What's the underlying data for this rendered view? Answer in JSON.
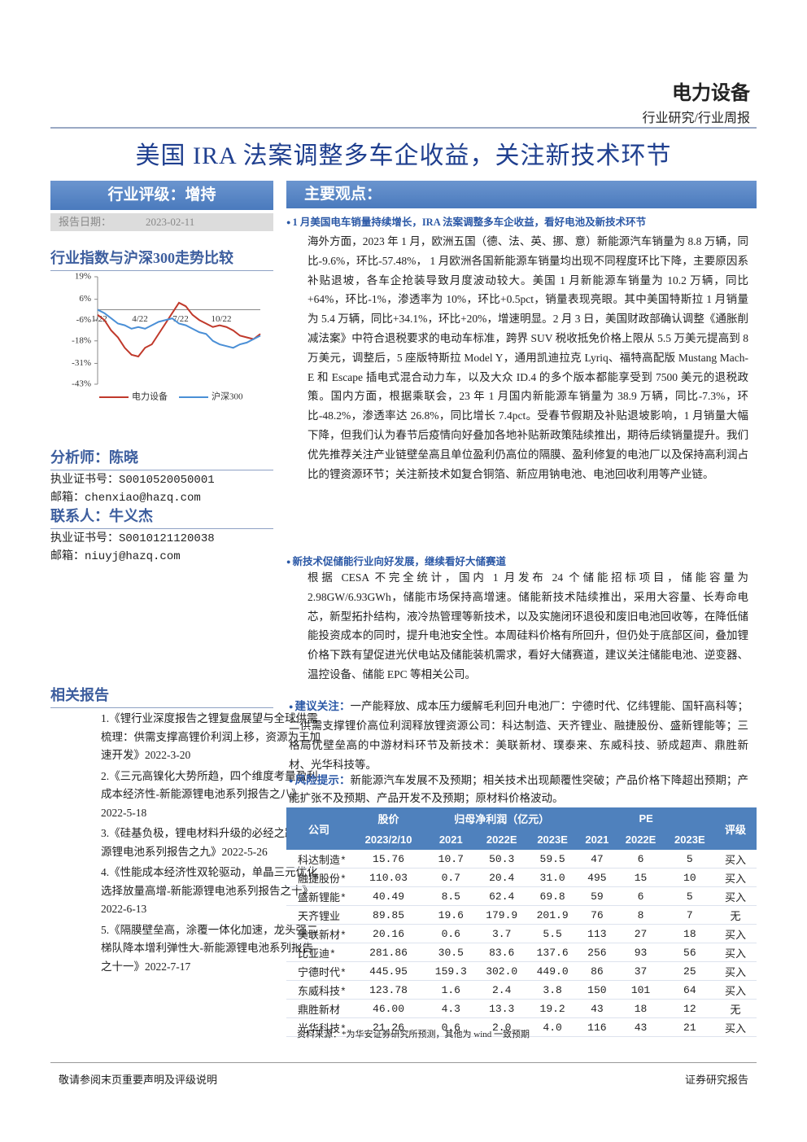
{
  "header": {
    "sector": "电力设备",
    "report_type": "行业研究/行业周报",
    "title": "美国 IRA 法案调整多车企收益，关注新技术环节"
  },
  "sidebar": {
    "rating": "行业评级：增持",
    "date_label": "报告日期：",
    "date": "2023-02-11",
    "chart_title": "行业指数与沪深300走势比较",
    "analyst": "分析师：陈晓",
    "analyst_cert": "执业证书号：S0010520050001",
    "analyst_email": "邮箱：chenxiao@hazq.com",
    "contact": "联系人：牛义杰",
    "contact_cert": "执业证书号：S0010121120038",
    "contact_email": "邮箱：niuyj@hazq.com",
    "related_title": "相关报告",
    "related": [
      "1.《锂行业深度报告之锂复盘展望与全球供需梳理：供需支撑高锂价利润上移，资源为王加速开发》2022-3-20",
      "2.《三元高镍化大势所趋，四个维度考量盈利成本经济性-新能源锂电池系列报告之八》2022-5-18",
      "3.《硅基负极，锂电材料升级的必经之路-新能源锂电池系列报告之九》2022-5-26",
      "4.《性能成本经济性双轮驱动，单晶三元优化选择放量高增-新能源锂电池系列报告之十》2022-6-13",
      "5.《隔膜壁垒高，涂覆一体化加速，龙头强二梯队降本增利弹性大-新能源锂电池系列报告之十一》2022-7-17"
    ]
  },
  "chart": {
    "type": "line",
    "categories": [
      "1/22",
      null,
      null,
      null,
      null,
      null,
      "4/22",
      null,
      null,
      null,
      null,
      null,
      "7/22",
      null,
      null,
      null,
      null,
      null,
      "10/22",
      null,
      null,
      null,
      null,
      null,
      null
    ],
    "series": [
      {
        "name": "电力设备",
        "color": "#c0392b",
        "values": [
          -3,
          -6,
          -12,
          -16,
          -22,
          -26,
          -27,
          -22,
          -20,
          -14,
          -8,
          -2,
          4,
          2,
          -3,
          -6,
          -8,
          -10,
          -9,
          -10,
          -12,
          -15,
          -16,
          -17,
          -14
        ]
      },
      {
        "name": "沪深300",
        "color": "#4a8fd6",
        "values": [
          0,
          -2,
          -5,
          -8,
          -9,
          -11,
          -10,
          -11,
          -9,
          -7,
          -6,
          -5,
          -8,
          -9,
          -11,
          -13,
          -14,
          -18,
          -20,
          -21,
          -22,
          -20,
          -19,
          -17,
          -15
        ]
      }
    ],
    "ylim": [
      -43,
      19
    ],
    "yticks": [
      {
        "value": 19,
        "label": "19%"
      },
      {
        "value": 6,
        "label": "6%"
      },
      {
        "value": -6,
        "label": "-6%"
      },
      {
        "value": -18,
        "label": "-18%"
      },
      {
        "value": -31,
        "label": "-31%"
      },
      {
        "value": -43,
        "label": "-43%"
      }
    ]
  },
  "main": {
    "heading": "主要观点：",
    "points": [
      {
        "heading": "1 月美国电车销量持续增长，IRA 法案调整多车企收益，看好电池及新技术环节",
        "text": "海外方面，2023 年 1 月，欧洲五国（德、法、英、挪、意）新能源汽车销量为 8.8 万辆，同比-9.6%，环比-57.48%， 1 月欧洲各国新能源车销量均出现不同程度环比下降，主要原因系补贴退坡，各车企抢装导致月度波动较大。美国 1 月新能源车销量为 10.2 万辆，同比+64%，环比-1%，渗透率为 10%，环比+0.5pct，销量表现亮眼。其中美国特斯拉 1 月销量为 5.4 万辆，同比+34.1%，环比+20%，增速明显。2 月 3 日，美国财政部确认调整《通胀削减法案》中符合退税要求的电动车标准，跨界 SUV 税收抵免价格上限从 5.5 万美元提高到 8 万美元，调整后，5 座版特斯拉 Model Y，通用凯迪拉克 Lyriq、福特高配版 Mustang Mach-E 和 Escape 插电式混合动力车，以及大众 ID.4 的多个版本都能享受到 7500 美元的退税政策。国内方面，根据乘联会，23 年 1 月国内新能源车销量为 38.9 万辆，同比-7.3%，环比-48.2%，渗透率达 26.8%，同比增长 7.4pct。受春节假期及补贴退坡影响，1 月销量大幅下降，但我们认为春节后疫情向好叠加各地补贴新政策陆续推出，期待后续销量提升。我们优先推荐关注产业链壁垒高且单位盈利仍高位的隔膜、盈利修复的电池厂以及保持高利润占比的锂资源环节；关注新技术如复合铜箔、新应用钠电池、电池回收利用等产业链。"
      },
      {
        "heading": "新技术促储能行业向好发展，继续看好大储赛道",
        "text": "根据 CESA 不完全统计，国内 1 月发布 24 个储能招标项目，储能容量为 2.98GW/6.93GWh，储能市场保持高增速。储能新技术陆续推出，采用大容量、长寿命电芯，新型拓扑结构，液冷热管理等新技术，以及实施闭环退役和废旧电池回收等，在降低储能投资成本的同时，提升电池安全性。本周硅料价格有所回升，但仍处于底部区间，叠加锂价格下跌有望促进光伏电站及储能装机需求，看好大储赛道，建议关注储能电池、逆变器、温控设备、储能 EPC 等相关公司。"
      }
    ],
    "suggest_label": "建议关注：",
    "suggest_text": "一产能释放、成本压力缓解毛利回升电池厂：宁德时代、亿纬锂能、国轩高科等；二供需支撑锂价高位利润释放锂资源公司：科达制造、天齐锂业、融捷股份、盛新锂能等；三格局优壁垒高的中游材料环节及新技术：美联新材、璞泰来、东威科技、骄成超声、鼎胜新材、光华科技等。",
    "risk_label": "风险提示：",
    "risk_text": "新能源汽车发展不及预期；相关技术出现颠覆性突破；产品价格下降超出预期；产能扩张不及预期、产品开发不及预期；原材料价格波动。"
  },
  "table": {
    "company": "公司",
    "price": "股价",
    "price_date": "2023/2/10",
    "profit": "归母净利润（亿元）",
    "pe": "PE",
    "rating": "评级",
    "years": [
      "2021",
      "2022E",
      "2023E"
    ],
    "rows": [
      [
        "科达制造*",
        "15.76",
        "10.7",
        "50.3",
        "59.5",
        "47",
        "6",
        "5",
        "买入"
      ],
      [
        "融捷股份*",
        "110.03",
        "0.7",
        "20.4",
        "31.0",
        "495",
        "15",
        "10",
        "买入"
      ],
      [
        "盛新锂能*",
        "40.49",
        "8.5",
        "62.4",
        "69.8",
        "59",
        "6",
        "5",
        "买入"
      ],
      [
        "天齐锂业",
        "89.85",
        "19.6",
        "179.9",
        "201.9",
        "76",
        "8",
        "7",
        "无"
      ],
      [
        "美联新材*",
        "20.16",
        "0.6",
        "3.7",
        "5.5",
        "113",
        "27",
        "18",
        "买入"
      ],
      [
        "比亚迪*",
        "281.86",
        "30.5",
        "83.6",
        "137.6",
        "256",
        "93",
        "56",
        "买入"
      ],
      [
        "宁德时代*",
        "445.95",
        "159.3",
        "302.0",
        "449.0",
        "86",
        "37",
        "25",
        "买入"
      ],
      [
        "东威科技*",
        "123.78",
        "1.6",
        "2.4",
        "3.8",
        "150",
        "101",
        "64",
        "买入"
      ],
      [
        "鼎胜新材",
        "46.00",
        "4.3",
        "13.3",
        "19.2",
        "43",
        "18",
        "12",
        "无"
      ],
      [
        "光华科技*",
        "21.26",
        "0.6",
        "2.0",
        "4.0",
        "116",
        "43",
        "21",
        "买入"
      ]
    ],
    "source": "资料来源：*为华安证券研究所预测，其他为 wind 一致预期"
  },
  "footer": {
    "left": "敬请参阅末页重要声明及评级说明",
    "right": "证券研究报告"
  }
}
